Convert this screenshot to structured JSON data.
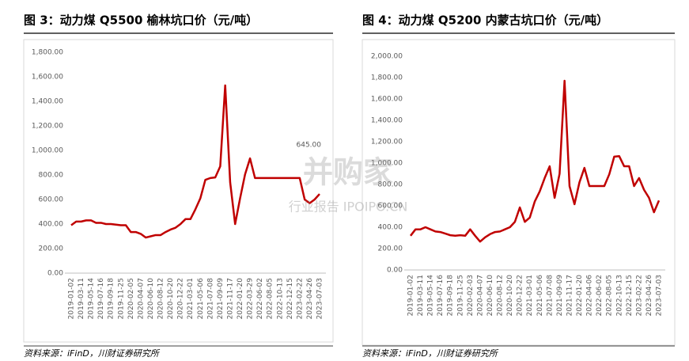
{
  "chart_data": [
    {
      "type": "line",
      "title": "图 3：动力煤 Q5500 榆林坑口价（元/吨）",
      "source": "资料来源：iFinD，川财证券研究所",
      "color": "#c00000",
      "categories": [
        "2019-01-02",
        null,
        "2019-03-11",
        null,
        "2019-05-14",
        null,
        "2019-07-16",
        null,
        "2019-09-18",
        null,
        "2019-11-25",
        null,
        "2020-02-05",
        null,
        "2020-04-07",
        null,
        "2020-06-10",
        null,
        "2020-08-12",
        null,
        "2020-10-20",
        null,
        "2020-12-22",
        null,
        "2021-03-01",
        null,
        "2021-05-06",
        null,
        "2021-07-08",
        null,
        "2021-09-09",
        null,
        "2021-11-17",
        null,
        "2022-01-20",
        null,
        "2022-03-29",
        null,
        "2022-06-02",
        null,
        "2022-08-05",
        null,
        "2022-10-13",
        null,
        "2022-12-15",
        null,
        "2023-02-22",
        null,
        "2023-04-26",
        null,
        "2023-07-03"
      ],
      "values": [
        390,
        420,
        420,
        430,
        430,
        410,
        410,
        400,
        400,
        395,
        390,
        390,
        335,
        335,
        320,
        290,
        300,
        310,
        310,
        335,
        355,
        370,
        400,
        440,
        440,
        520,
        610,
        760,
        775,
        780,
        870,
        1530,
        740,
        400,
        610,
        805,
        935,
        775,
        775,
        775,
        775,
        775,
        775,
        775,
        775,
        775,
        775,
        600,
        570,
        600,
        645
      ],
      "value_labels": [
        null,
        null,
        null,
        null,
        null,
        null,
        null,
        null,
        null,
        null,
        null,
        null,
        null,
        null,
        null,
        null,
        null,
        null,
        null,
        null,
        null,
        null,
        null,
        null,
        null,
        null,
        null,
        null,
        null,
        null,
        null,
        null,
        null,
        null,
        null,
        null,
        null,
        null,
        null,
        null,
        null,
        null,
        null,
        null,
        null,
        null,
        null,
        null,
        null,
        null,
        "645.00"
      ],
      "ylim": [
        0,
        1800
      ],
      "yticks": [
        {
          "value": 0,
          "label": "0.00"
        },
        {
          "value": 200,
          "label": "200.00"
        },
        {
          "value": 400,
          "label": "400.00"
        },
        {
          "value": 600,
          "label": "600.00"
        },
        {
          "value": 800,
          "label": "800.00"
        },
        {
          "value": 1000,
          "label": "1,000.00"
        },
        {
          "value": 1200,
          "label": "1,200.00"
        },
        {
          "value": 1400,
          "label": "1,400.00"
        },
        {
          "value": 1600,
          "label": "1,600.00"
        },
        {
          "value": 1800,
          "label": "1,800.00"
        }
      ]
    },
    {
      "type": "line",
      "title": "图 4：动力煤 Q5200 内蒙古坑口价（元/吨）",
      "source": "资料来源：iFinD，川财证券研究所",
      "color": "#c00000",
      "categories": [
        "2019-01-02",
        null,
        "2019-03-11",
        null,
        "2019-05-14",
        null,
        "2019-07-16",
        null,
        "2019-09-18",
        null,
        "2019-11-25",
        null,
        "2020-02-03",
        null,
        "2020-04-07",
        null,
        "2020-06-10",
        null,
        "2020-08-12",
        null,
        "2020-10-20",
        null,
        "2020-12-22",
        null,
        "2021-03-01",
        null,
        "2021-05-06",
        null,
        "2021-07-08",
        null,
        "2021-09-09",
        null,
        "2021-11-17",
        null,
        "2022-01-20",
        null,
        "2022-04-06",
        null,
        "2022-06-02",
        null,
        "2022-08-05",
        null,
        "2022-10-13",
        null,
        "2022-12-15",
        null,
        "2023-02-22",
        null,
        "2023-04-26",
        null,
        "2023-07-03"
      ],
      "values": [
        320,
        380,
        380,
        400,
        380,
        360,
        355,
        340,
        325,
        320,
        325,
        320,
        380,
        320,
        265,
        305,
        335,
        355,
        360,
        380,
        400,
        450,
        585,
        450,
        490,
        640,
        735,
        860,
        970,
        675,
        900,
        1770,
        785,
        615,
        820,
        955,
        785,
        785,
        785,
        785,
        895,
        1060,
        1065,
        970,
        970,
        785,
        860,
        750,
        675,
        540,
        650
      ],
      "ylim": [
        0,
        2000
      ],
      "yticks": [
        {
          "value": 0,
          "label": "0.00"
        },
        {
          "value": 200,
          "label": "200.00"
        },
        {
          "value": 400,
          "label": "400.00"
        },
        {
          "value": 600,
          "label": "600.00"
        },
        {
          "value": 800,
          "label": "800.00"
        },
        {
          "value": 1000,
          "label": "1,000.00"
        },
        {
          "value": 1200,
          "label": "1,200.00"
        },
        {
          "value": 1400,
          "label": "1,400.00"
        },
        {
          "value": 1600,
          "label": "1,600.00"
        },
        {
          "value": 1800,
          "label": "1,800.00"
        },
        {
          "value": 2000,
          "label": "2,000.00"
        }
      ]
    }
  ],
  "watermark": {
    "text": "并购家",
    "subtext": "行业报告 IPOIPO.CN"
  }
}
